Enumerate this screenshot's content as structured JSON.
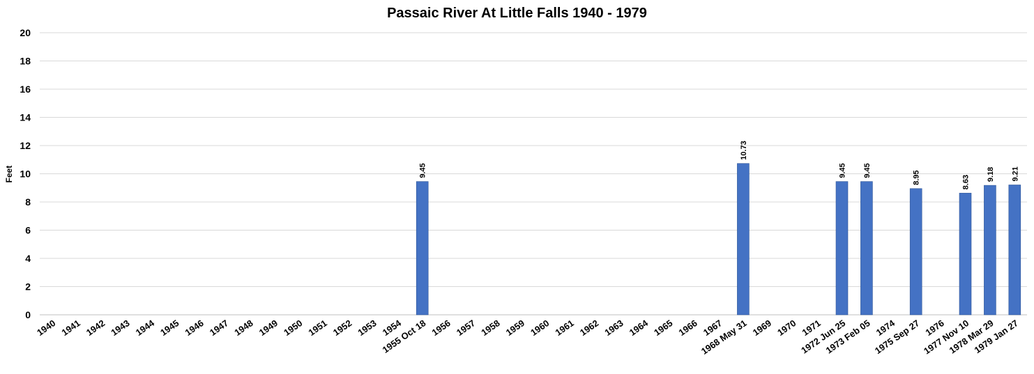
{
  "chart_data": {
    "type": "bar",
    "title": "Passaic River At Little Falls 1940 - 1979",
    "xlabel": "",
    "ylabel": "Feet",
    "ylim": [
      0,
      20
    ],
    "yticks": [
      0,
      2,
      4,
      6,
      8,
      10,
      12,
      14,
      16,
      18,
      20
    ],
    "grid": true,
    "legend": "none",
    "bar_color": "#4472c4",
    "categories": [
      "1940",
      "1941",
      "1942",
      "1943",
      "1944",
      "1945",
      "1946",
      "1947",
      "1948",
      "1949",
      "1950",
      "1951",
      "1952",
      "1953",
      "1954",
      "1955 Oct 18",
      "1956",
      "1957",
      "1958",
      "1959",
      "1960",
      "1961",
      "1962",
      "1963",
      "1964",
      "1965",
      "1966",
      "1967",
      "1968 May 31",
      "1969",
      "1970",
      "1971",
      "1972 Jun 25",
      "1973 Feb 05",
      "1974",
      "1975 Sep 27",
      "1976",
      "1977 Nov 10",
      "1978 Mar 29",
      "1979 Jan 27"
    ],
    "values": [
      null,
      null,
      null,
      null,
      null,
      null,
      null,
      null,
      null,
      null,
      null,
      null,
      null,
      null,
      null,
      9.45,
      null,
      null,
      null,
      null,
      null,
      null,
      null,
      null,
      null,
      null,
      null,
      null,
      10.73,
      null,
      null,
      null,
      9.45,
      9.45,
      null,
      8.95,
      null,
      8.63,
      9.18,
      9.21
    ],
    "data_labels": [
      null,
      null,
      null,
      null,
      null,
      null,
      null,
      null,
      null,
      null,
      null,
      null,
      null,
      null,
      null,
      "9.45",
      null,
      null,
      null,
      null,
      null,
      null,
      null,
      null,
      null,
      null,
      null,
      null,
      "10.73",
      null,
      null,
      null,
      "9.45",
      "9.45",
      null,
      "8.95",
      null,
      "8.63",
      "9.18",
      "9.21"
    ]
  }
}
